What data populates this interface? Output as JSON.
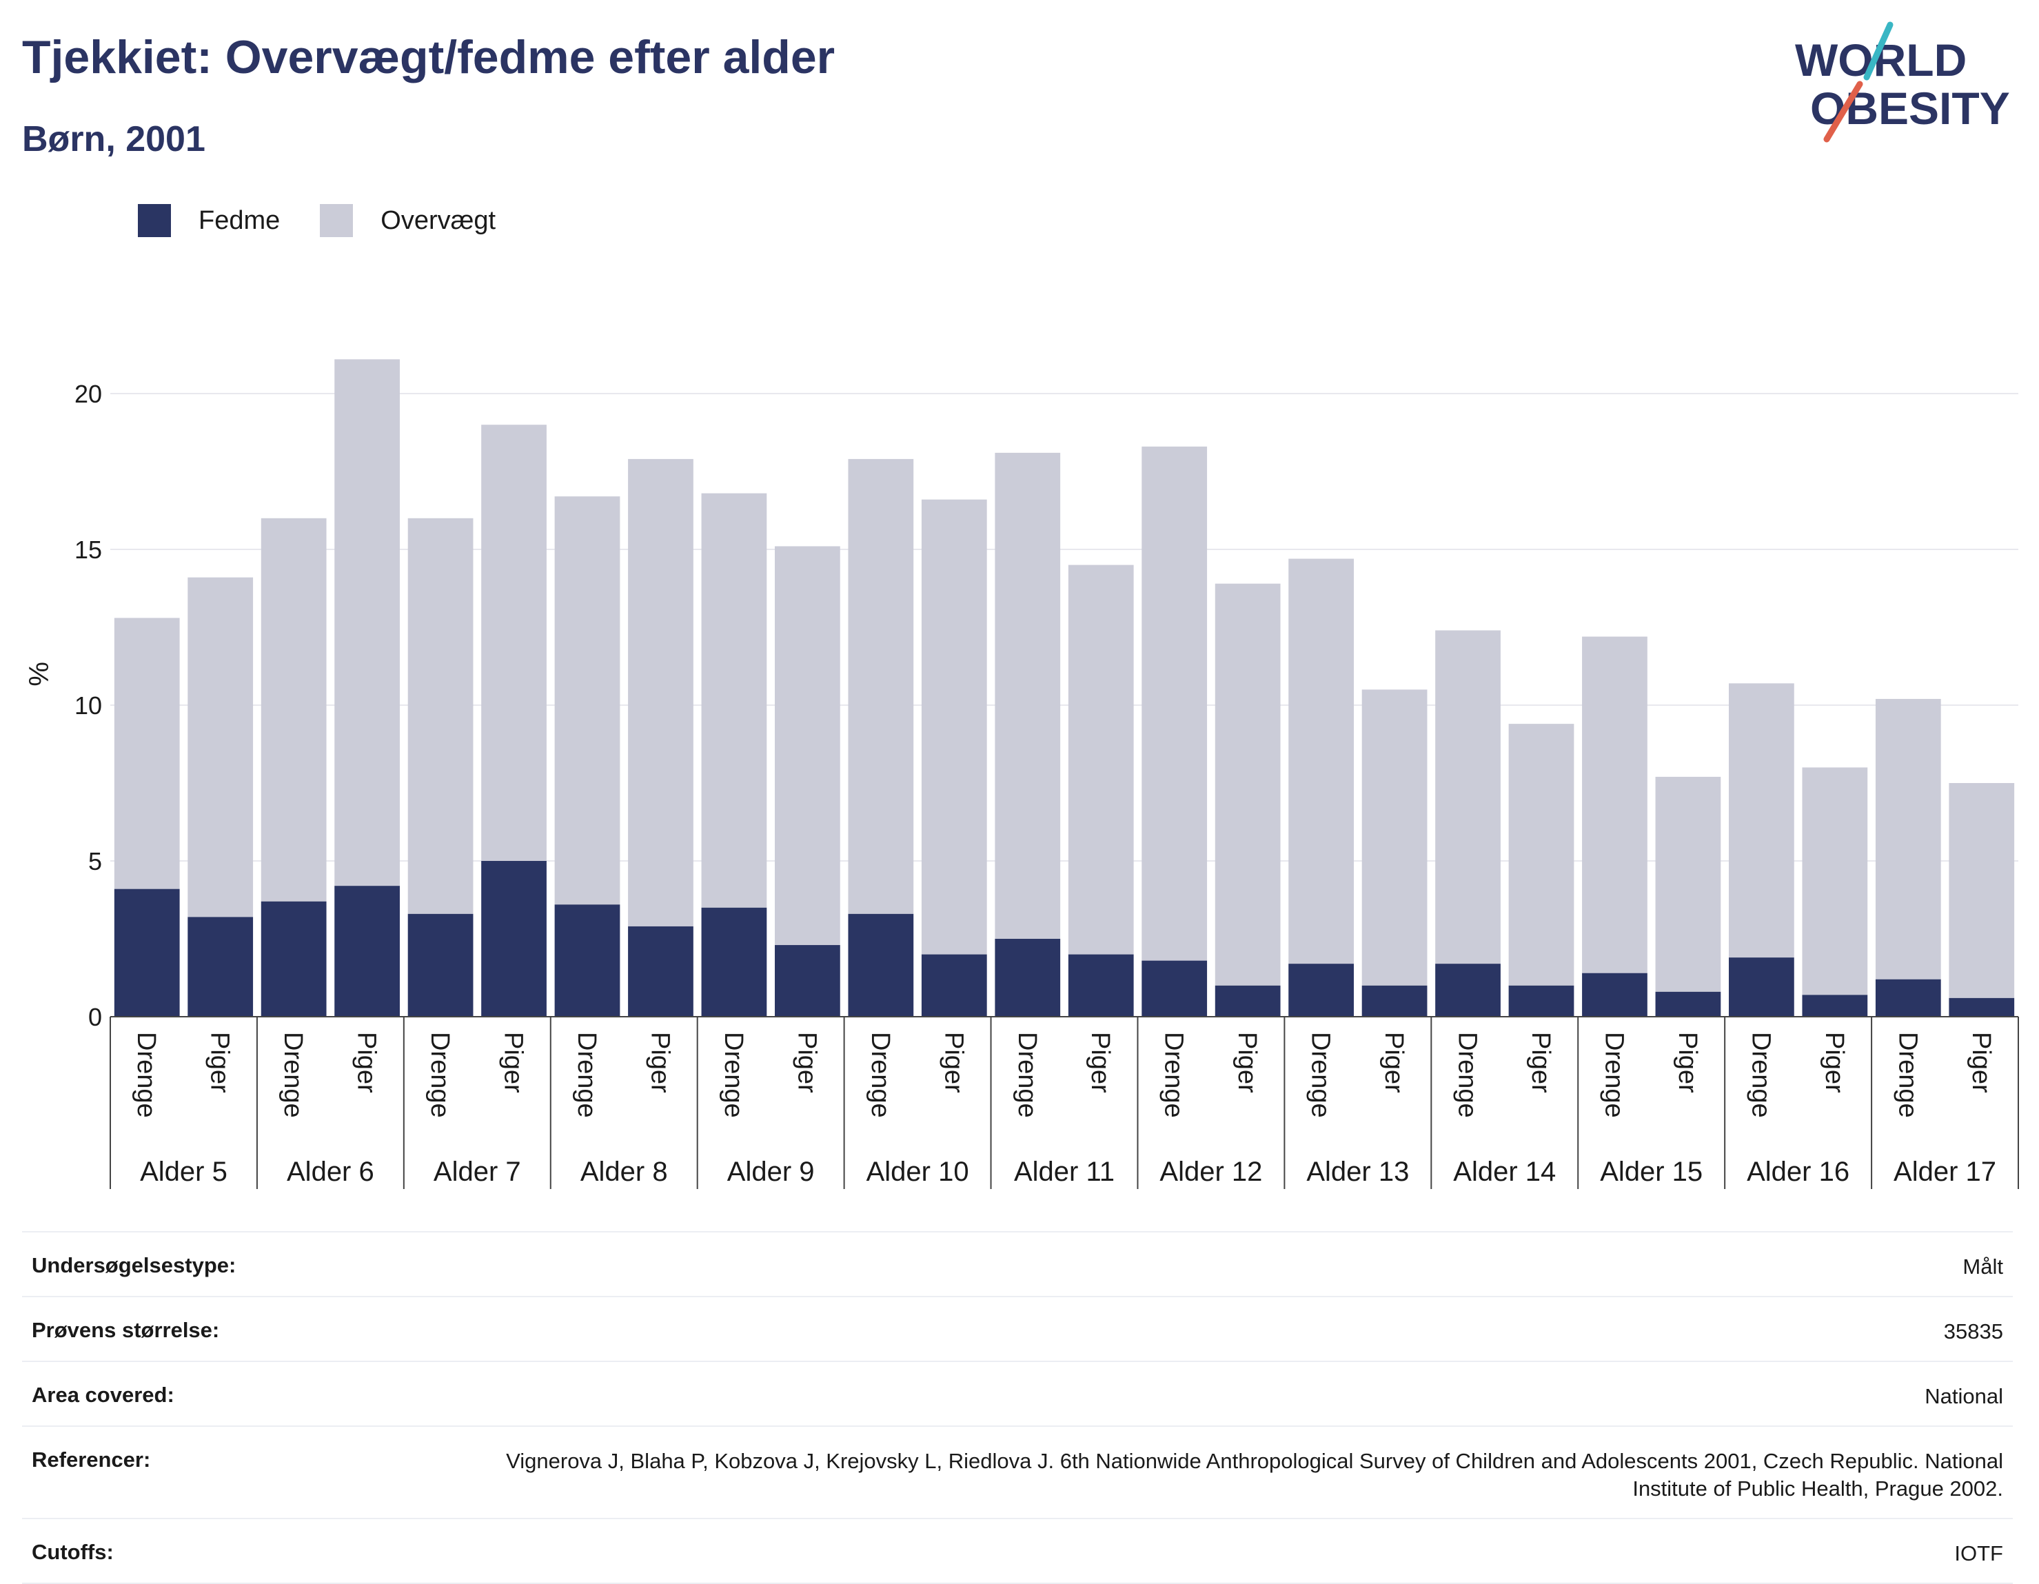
{
  "header": {
    "title": "Tjekkiet: Overvægt/fedme efter alder",
    "subtitle": "Børn, 2001"
  },
  "logo": {
    "line1": "WORLD",
    "line2": "OBESITY",
    "accent_colors": [
      "#39b6c4",
      "#e0604a"
    ]
  },
  "colors": {
    "fedme": "#2a3563",
    "overvaegt": "#cbccd8",
    "grid": "#e8e8ee",
    "text": "#2b3463"
  },
  "legend": [
    {
      "label": "Fedme",
      "color": "#2a3563"
    },
    {
      "label": "Overvægt",
      "color": "#cbccd8"
    }
  ],
  "chart_data": {
    "type": "bar",
    "stacked": true,
    "title": "Tjekkiet: Overvægt/fedme efter alder",
    "subtitle": "Børn, 2001",
    "ylabel": "%",
    "ylim": [
      0,
      22
    ],
    "yticks": [
      0,
      5,
      10,
      15,
      20
    ],
    "grid": true,
    "legend_position": "top-left",
    "groups": [
      "Alder 5",
      "Alder 6",
      "Alder 7",
      "Alder 8",
      "Alder 9",
      "Alder 10",
      "Alder 11",
      "Alder 12",
      "Alder 13",
      "Alder 14",
      "Alder 15",
      "Alder 16",
      "Alder 17"
    ],
    "subcategories": [
      "Drenge",
      "Piger"
    ],
    "series": [
      {
        "name": "Fedme",
        "values": [
          4.1,
          3.2,
          3.7,
          4.2,
          3.3,
          5.0,
          3.6,
          2.9,
          3.5,
          2.3,
          3.3,
          2.0,
          2.5,
          2.0,
          1.8,
          1.0,
          1.7,
          1.0,
          1.7,
          1.0,
          1.4,
          0.8,
          1.9,
          0.7,
          1.2,
          0.6
        ]
      },
      {
        "name": "Overvægt",
        "values": [
          8.7,
          10.9,
          12.3,
          16.9,
          12.7,
          14.0,
          13.1,
          15.0,
          13.3,
          12.8,
          14.6,
          14.6,
          15.6,
          12.5,
          16.5,
          12.9,
          13.0,
          9.5,
          10.7,
          8.4,
          10.8,
          6.9,
          8.8,
          7.3,
          9.0,
          6.9
        ]
      }
    ],
    "totals": [
      12.8,
      14.1,
      16.0,
      21.1,
      16.0,
      19.0,
      16.7,
      17.9,
      16.8,
      15.1,
      17.9,
      16.6,
      18.1,
      14.5,
      18.3,
      13.9,
      14.7,
      10.5,
      12.4,
      9.4,
      12.2,
      7.7,
      10.7,
      8.0,
      10.2,
      7.5
    ]
  },
  "meta": [
    {
      "key": "Undersøgelsestype:",
      "value": "Målt"
    },
    {
      "key": "Prøvens størrelse:",
      "value": "35835"
    },
    {
      "key": "Area covered:",
      "value": "National"
    },
    {
      "key": "Referencer:",
      "value": "Vignerova J, Blaha P, Kobzova J, Krejovsky L, Riedlova J. 6th Nationwide Anthropological Survey of Children and Adolescents 2001, Czech Republic. National Institute of Public Health, Prague 2002."
    },
    {
      "key": "Cutoffs:",
      "value": "IOTF"
    }
  ]
}
